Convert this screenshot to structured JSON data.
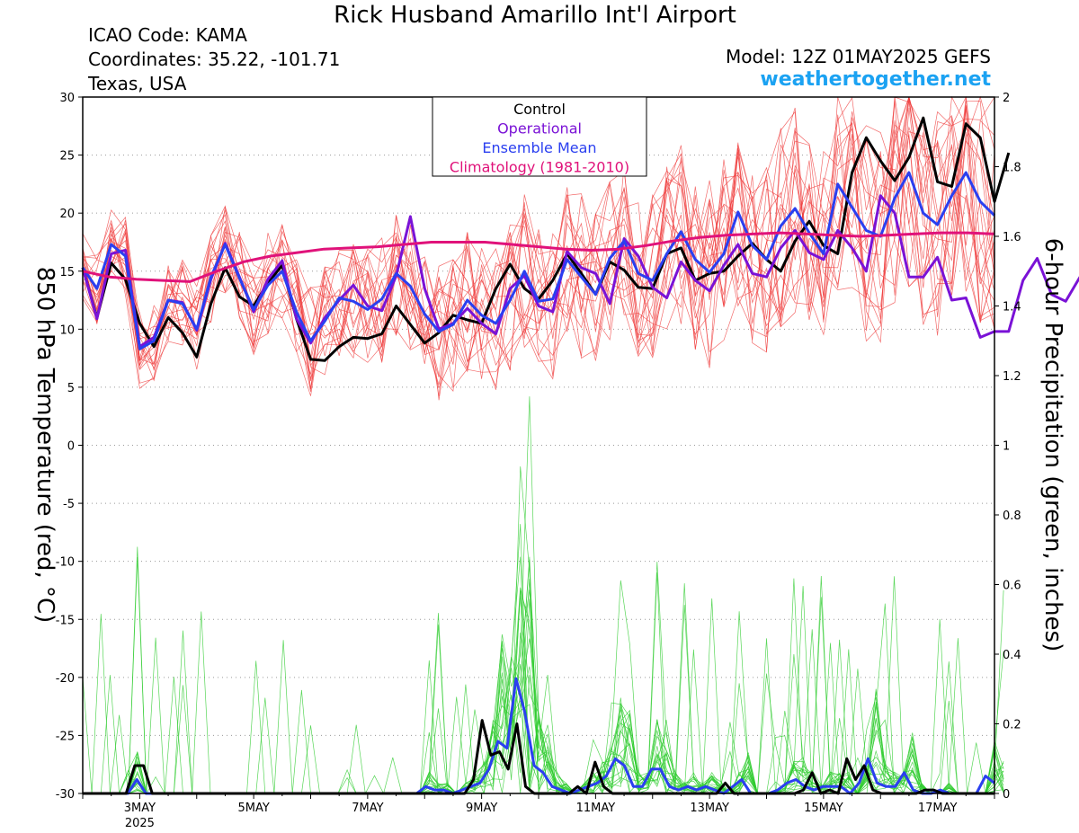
{
  "header": {
    "title": "Rick Husband Amarillo Int'l Airport",
    "icao": "ICAO Code: KAMA",
    "coordinates": "Coordinates: 35.22, -101.71",
    "region": "Texas, USA",
    "model": "Model: 12Z 01MAY2025 GEFS",
    "site": "weathertogether.net"
  },
  "colors": {
    "member_temp": "#ef3b3b",
    "member_precip": "#2ecc2e",
    "control": "#000000",
    "operational": "#7a12d6",
    "ensemble_mean": "#2a3ff0",
    "climatology": "#e0127a",
    "site_text": "#1ba2f2"
  },
  "chart_data": {
    "type": "line",
    "ylabel_left": "850 hPa Temperature (red, °C)",
    "ylabel_right": "6-hour Precipitation (green, inches)",
    "ylim_left": [
      -30,
      30
    ],
    "ylim_right": [
      0,
      2
    ],
    "yticks_left": [
      -30,
      -25,
      -20,
      -15,
      -10,
      -5,
      0,
      5,
      10,
      15,
      20,
      25,
      30
    ],
    "yticks_right": [
      0,
      0.2,
      0.4,
      0.6,
      0.8,
      1,
      1.2,
      1.4,
      1.6,
      1.8,
      2
    ],
    "x_start_hours": 0,
    "x_end_hours": 384,
    "step_hours": 6,
    "xticks": [
      {
        "hour": 24,
        "label": "3MAY",
        "sub": "2025"
      },
      {
        "hour": 72,
        "label": "5MAY"
      },
      {
        "hour": 120,
        "label": "7MAY"
      },
      {
        "hour": 168,
        "label": "9MAY"
      },
      {
        "hour": 216,
        "label": "11MAY"
      },
      {
        "hour": 264,
        "label": "13MAY"
      },
      {
        "hour": 312,
        "label": "15MAY"
      },
      {
        "hour": 360,
        "label": "17MAY"
      }
    ],
    "grid": "dotted horizontal",
    "legend_position": "top-center",
    "legend": [
      "Control",
      "Operational",
      "Ensemble Mean",
      "Climatology (1981-2010)"
    ],
    "series": [
      {
        "name": "Control",
        "kind": "temperature",
        "values": [
          15.3,
          11,
          15.7,
          14.3,
          10.5,
          8.5,
          11,
          9.7,
          7.6,
          12.2,
          15.3,
          12.8,
          12,
          14,
          15.5,
          10.9,
          7.4,
          7.3,
          8.5,
          9.3,
          9.2,
          9.6,
          12,
          10.4,
          8.8,
          9.7,
          11.2,
          10.8,
          10.5,
          13.5,
          15.6,
          13.5,
          12.6,
          14.2,
          16.5,
          14.8,
          13,
          15.8,
          15.1,
          13.6,
          13.5,
          16.5,
          17,
          14.2,
          14.8,
          15,
          16.3,
          17.4,
          16,
          15,
          17.6,
          19.3,
          17.2,
          16.5,
          23.5,
          26.5,
          24.5,
          22.8,
          24.8,
          28.2,
          22.7,
          22.3,
          27.7,
          26.5,
          21,
          25.2
        ]
      },
      {
        "name": "Operational",
        "kind": "temperature",
        "values": [
          15.3,
          10.9,
          16.5,
          16.8,
          8.5,
          9.3,
          12.5,
          12.3,
          9.9,
          14.3,
          17.4,
          14.5,
          11.5,
          14.3,
          15.9,
          10.9,
          8.8,
          11,
          12.5,
          13.8,
          12,
          11.6,
          14.6,
          19.7,
          13.5,
          10,
          10.5,
          11.8,
          10.5,
          9.6,
          13.5,
          14.6,
          12,
          11.5,
          16.7,
          15.3,
          14.8,
          12.2,
          17.8,
          16.3,
          13.6,
          12.7,
          15.8,
          14.2,
          13.3,
          15.5,
          17.3,
          14.8,
          14.5,
          17,
          18.5,
          16.6,
          16,
          18.5,
          17,
          15,
          21.5,
          20,
          14.5,
          14.5,
          16.2,
          12.5,
          12.7,
          9.3,
          9.8,
          9.8,
          14.2,
          16.1,
          13,
          12.4,
          14.5
        ]
      },
      {
        "name": "Ensemble Mean",
        "kind": "temperature",
        "values": [
          15.3,
          13.5,
          17.3,
          16.3,
          8.3,
          9,
          12.5,
          12.2,
          10,
          14.5,
          17.3,
          14.4,
          11.7,
          13.8,
          15,
          11.5,
          9,
          10.7,
          12.7,
          12.4,
          11.7,
          12.6,
          14.8,
          13.7,
          11.3,
          9.8,
          10.4,
          12.5,
          11.2,
          10.5,
          12.5,
          15,
          12.4,
          12.6,
          16,
          14.5,
          13,
          16.1,
          17.6,
          14.8,
          14.2,
          16.5,
          18.4,
          16,
          14.9,
          16.5,
          20.1,
          17.2,
          16,
          18.9,
          20.4,
          18.3,
          16.5,
          22.5,
          20.5,
          18.5,
          18,
          21.3,
          23.5,
          20,
          19,
          21.5,
          23.5,
          21,
          19.8
        ]
      },
      {
        "name": "Climatology (1981-2010)",
        "kind": "temperature",
        "values": [
          15,
          14.5,
          14.3,
          14.2,
          14.1,
          15,
          15.8,
          16.3,
          16.6,
          16.9,
          17,
          17.1,
          17.3,
          17.5,
          17.5,
          17.5,
          17.3,
          17.1,
          16.9,
          16.8,
          16.9,
          17.2,
          17.6,
          17.9,
          18.1,
          18.2,
          18.3,
          18.2,
          18.1,
          18,
          18.1,
          18.2,
          18.3,
          18.3,
          18.2
        ]
      },
      {
        "name": "Ensemble Mean",
        "kind": "precipitation",
        "values": [
          0,
          0,
          0,
          0,
          0,
          0,
          0.04,
          0,
          0,
          0,
          0,
          0,
          0,
          0,
          0,
          0,
          0,
          0,
          0,
          0,
          0,
          0,
          0,
          0,
          0,
          0,
          0,
          0,
          0,
          0,
          0,
          0,
          0,
          0,
          0,
          0,
          0,
          0,
          0.02,
          0.01,
          0.01,
          0,
          0.01,
          0.02,
          0.03,
          0.07,
          0.15,
          0.13,
          0.33,
          0.23,
          0.08,
          0.06,
          0.02,
          0.01,
          0,
          0.01,
          0.02,
          0.03,
          0.05,
          0.1,
          0.08,
          0.02,
          0.02,
          0.07,
          0.07,
          0.02,
          0.01,
          0.02,
          0.01,
          0.02,
          0.01,
          0,
          0.02,
          0.04,
          0,
          0,
          0,
          0.01,
          0.03,
          0.04,
          0.02,
          0.01,
          0.02,
          0.02,
          0.02,
          0,
          0.03,
          0.1,
          0.03,
          0.02,
          0.02,
          0.06,
          0.01,
          0,
          0,
          0.01,
          0,
          0,
          0,
          0,
          0.05,
          0.03
        ]
      },
      {
        "name": "Control",
        "kind": "precipitation",
        "values": [
          0,
          0,
          0,
          0,
          0,
          0,
          0.08,
          0.08,
          0,
          0,
          0,
          0,
          0,
          0,
          0,
          0,
          0,
          0,
          0,
          0,
          0,
          0,
          0,
          0,
          0,
          0,
          0,
          0,
          0,
          0,
          0,
          0,
          0,
          0,
          0,
          0,
          0,
          0,
          0,
          0,
          0,
          0,
          0,
          0,
          0,
          0.04,
          0.21,
          0.11,
          0.12,
          0.07,
          0.2,
          0.02,
          0,
          0,
          0,
          0,
          0,
          0.02,
          0,
          0.09,
          0.02,
          0,
          0,
          0,
          0,
          0,
          0,
          0,
          0,
          0,
          0,
          0,
          0,
          0,
          0.03,
          0,
          0,
          0,
          0,
          0,
          0,
          0,
          0,
          0.01,
          0.06,
          0,
          0.01,
          0,
          0.1,
          0.04,
          0.08,
          0.01,
          0,
          0,
          0,
          0,
          0,
          0.01,
          0.01,
          0,
          0,
          0,
          0,
          0,
          0,
          0
        ]
      }
    ]
  }
}
